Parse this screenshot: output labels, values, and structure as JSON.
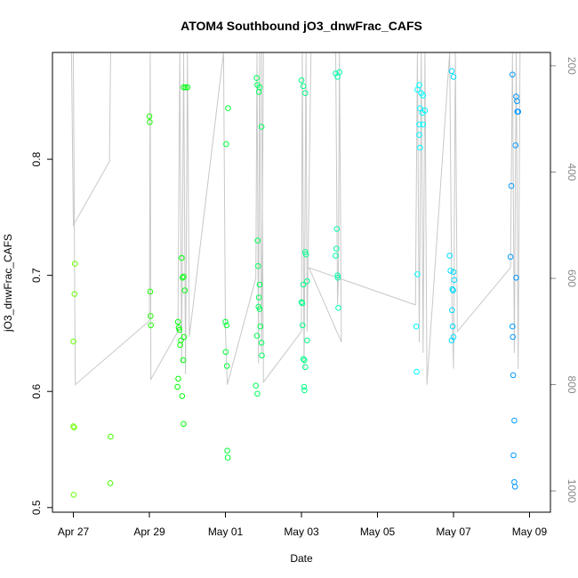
{
  "chart_data": {
    "type": "scatter",
    "title": "ATOM4 Southbound jO3_dnwFrac_CAFS",
    "xlabel": "Date",
    "ylabel": "jO3_dnwFrac_CAFS",
    "x_unit": "days since Apr 27",
    "xlim": [
      -0.55,
      12.55
    ],
    "ylim": [
      0.496,
      0.892
    ],
    "y2lim": [
      1040,
      175
    ],
    "x_ticks": [
      {
        "value": 0,
        "label": "Apr 27"
      },
      {
        "value": 2,
        "label": "Apr 29"
      },
      {
        "value": 4,
        "label": "May 01"
      },
      {
        "value": 6,
        "label": "May 03"
      },
      {
        "value": 8,
        "label": "May 05"
      },
      {
        "value": 10,
        "label": "May 07"
      },
      {
        "value": 12,
        "label": "May 09"
      }
    ],
    "y_ticks": [
      {
        "value": 0.5,
        "label": "0.5"
      },
      {
        "value": 0.6,
        "label": "0.6"
      },
      {
        "value": 0.7,
        "label": "0.7"
      },
      {
        "value": 0.8,
        "label": "0.8"
      }
    ],
    "y2_ticks": [
      {
        "value": 200,
        "label": "200"
      },
      {
        "value": 400,
        "label": "400"
      },
      {
        "value": 600,
        "label": "600"
      },
      {
        "value": 800,
        "label": "800"
      },
      {
        "value": 1000,
        "label": "1000"
      }
    ],
    "points": [
      {
        "x": 0.0,
        "y": 0.57
      },
      {
        "x": 0.02,
        "y": 0.569
      },
      {
        "x": 0.0,
        "y": 0.643
      },
      {
        "x": 0.03,
        "y": 0.684
      },
      {
        "x": 0.04,
        "y": 0.71
      },
      {
        "x": 0.01,
        "y": 0.511
      },
      {
        "x": 0.98,
        "y": 0.561
      },
      {
        "x": 0.97,
        "y": 0.521
      },
      {
        "x": 2.0,
        "y": 0.837
      },
      {
        "x": 2.01,
        "y": 0.832
      },
      {
        "x": 2.02,
        "y": 0.686
      },
      {
        "x": 2.03,
        "y": 0.665
      },
      {
        "x": 2.04,
        "y": 0.657
      },
      {
        "x": 2.75,
        "y": 0.66
      },
      {
        "x": 2.77,
        "y": 0.655
      },
      {
        "x": 2.79,
        "y": 0.653
      },
      {
        "x": 2.81,
        "y": 0.64
      },
      {
        "x": 2.83,
        "y": 0.644
      },
      {
        "x": 2.76,
        "y": 0.611
      },
      {
        "x": 2.74,
        "y": 0.604
      },
      {
        "x": 2.86,
        "y": 0.596
      },
      {
        "x": 2.9,
        "y": 0.572
      },
      {
        "x": 2.85,
        "y": 0.715
      },
      {
        "x": 2.87,
        "y": 0.698
      },
      {
        "x": 2.9,
        "y": 0.699
      },
      {
        "x": 2.93,
        "y": 0.687
      },
      {
        "x": 2.91,
        "y": 0.647
      },
      {
        "x": 2.89,
        "y": 0.627
      },
      {
        "x": 2.9,
        "y": 0.862
      },
      {
        "x": 2.95,
        "y": 0.862
      },
      {
        "x": 3.0,
        "y": 0.862
      },
      {
        "x": 4.0,
        "y": 0.66
      },
      {
        "x": 4.03,
        "y": 0.657
      },
      {
        "x": 4.01,
        "y": 0.634
      },
      {
        "x": 4.04,
        "y": 0.622
      },
      {
        "x": 4.05,
        "y": 0.549
      },
      {
        "x": 4.06,
        "y": 0.543
      },
      {
        "x": 4.02,
        "y": 0.813
      },
      {
        "x": 4.07,
        "y": 0.844
      },
      {
        "x": 4.82,
        "y": 0.87
      },
      {
        "x": 4.84,
        "y": 0.864
      },
      {
        "x": 4.88,
        "y": 0.858
      },
      {
        "x": 4.9,
        "y": 0.862
      },
      {
        "x": 4.95,
        "y": 0.828
      },
      {
        "x": 4.85,
        "y": 0.73
      },
      {
        "x": 4.86,
        "y": 0.708
      },
      {
        "x": 4.9,
        "y": 0.692
      },
      {
        "x": 4.88,
        "y": 0.681
      },
      {
        "x": 4.87,
        "y": 0.673
      },
      {
        "x": 4.9,
        "y": 0.671
      },
      {
        "x": 4.92,
        "y": 0.656
      },
      {
        "x": 4.83,
        "y": 0.648
      },
      {
        "x": 4.95,
        "y": 0.642
      },
      {
        "x": 4.96,
        "y": 0.631
      },
      {
        "x": 4.8,
        "y": 0.605
      },
      {
        "x": 4.84,
        "y": 0.598
      },
      {
        "x": 6.0,
        "y": 0.868
      },
      {
        "x": 6.05,
        "y": 0.863
      },
      {
        "x": 6.1,
        "y": 0.857
      },
      {
        "x": 6.1,
        "y": 0.72
      },
      {
        "x": 6.12,
        "y": 0.718
      },
      {
        "x": 6.15,
        "y": 0.695
      },
      {
        "x": 6.05,
        "y": 0.692
      },
      {
        "x": 6.0,
        "y": 0.677
      },
      {
        "x": 6.02,
        "y": 0.676
      },
      {
        "x": 6.03,
        "y": 0.657
      },
      {
        "x": 6.15,
        "y": 0.644
      },
      {
        "x": 6.05,
        "y": 0.628
      },
      {
        "x": 6.08,
        "y": 0.627
      },
      {
        "x": 6.1,
        "y": 0.621
      },
      {
        "x": 6.07,
        "y": 0.604
      },
      {
        "x": 6.08,
        "y": 0.601
      },
      {
        "x": 6.9,
        "y": 0.874
      },
      {
        "x": 6.95,
        "y": 0.871
      },
      {
        "x": 7.0,
        "y": 0.875
      },
      {
        "x": 6.93,
        "y": 0.74
      },
      {
        "x": 6.92,
        "y": 0.723
      },
      {
        "x": 6.9,
        "y": 0.717
      },
      {
        "x": 6.95,
        "y": 0.7
      },
      {
        "x": 6.96,
        "y": 0.698
      },
      {
        "x": 6.97,
        "y": 0.672
      },
      {
        "x": 9.05,
        "y": 0.86
      },
      {
        "x": 9.1,
        "y": 0.864
      },
      {
        "x": 9.15,
        "y": 0.857
      },
      {
        "x": 9.2,
        "y": 0.855
      },
      {
        "x": 9.12,
        "y": 0.844
      },
      {
        "x": 9.18,
        "y": 0.84
      },
      {
        "x": 9.25,
        "y": 0.842
      },
      {
        "x": 9.1,
        "y": 0.83
      },
      {
        "x": 9.2,
        "y": 0.83
      },
      {
        "x": 9.1,
        "y": 0.821
      },
      {
        "x": 9.12,
        "y": 0.81
      },
      {
        "x": 9.05,
        "y": 0.701
      },
      {
        "x": 9.02,
        "y": 0.656
      },
      {
        "x": 9.03,
        "y": 0.617
      },
      {
        "x": 9.95,
        "y": 0.876
      },
      {
        "x": 10.0,
        "y": 0.871
      },
      {
        "x": 9.9,
        "y": 0.717
      },
      {
        "x": 9.92,
        "y": 0.704
      },
      {
        "x": 10.0,
        "y": 0.703
      },
      {
        "x": 10.02,
        "y": 0.696
      },
      {
        "x": 9.97,
        "y": 0.688
      },
      {
        "x": 9.99,
        "y": 0.687
      },
      {
        "x": 9.96,
        "y": 0.67
      },
      {
        "x": 9.98,
        "y": 0.656
      },
      {
        "x": 10.0,
        "y": 0.647
      },
      {
        "x": 9.95,
        "y": 0.644
      },
      {
        "x": 11.55,
        "y": 0.873
      },
      {
        "x": 11.65,
        "y": 0.854
      },
      {
        "x": 11.67,
        "y": 0.85
      },
      {
        "x": 11.68,
        "y": 0.841
      },
      {
        "x": 11.7,
        "y": 0.841
      },
      {
        "x": 11.63,
        "y": 0.812
      },
      {
        "x": 11.52,
        "y": 0.777
      },
      {
        "x": 11.5,
        "y": 0.716
      },
      {
        "x": 11.65,
        "y": 0.698
      },
      {
        "x": 11.55,
        "y": 0.656
      },
      {
        "x": 11.56,
        "y": 0.647
      },
      {
        "x": 11.57,
        "y": 0.614
      },
      {
        "x": 11.6,
        "y": 0.575
      },
      {
        "x": 11.58,
        "y": 0.545
      },
      {
        "x": 11.6,
        "y": 0.522
      },
      {
        "x": 11.62,
        "y": 0.518
      }
    ],
    "altitude_trace_note": "gray line = pressure altitude on right axis",
    "altitude_trace": [
      [
        -0.05,
        175
      ],
      [
        0.0,
        500
      ],
      [
        0.95,
        380
      ],
      [
        0.98,
        175
      ],
      [
        0.99,
        175
      ],
      [
        0.0,
        175
      ],
      [
        0.05,
        800
      ],
      [
        2.0,
        680
      ],
      [
        2.02,
        175
      ],
      [
        2.04,
        790
      ],
      [
        2.75,
        700
      ],
      [
        2.8,
        175
      ],
      [
        2.85,
        760
      ],
      [
        2.9,
        175
      ],
      [
        2.95,
        780
      ],
      [
        3.0,
        175
      ],
      [
        3.05,
        710
      ],
      [
        3.95,
        175
      ],
      [
        4.0,
        695
      ],
      [
        4.05,
        800
      ],
      [
        4.8,
        600
      ],
      [
        4.83,
        175
      ],
      [
        4.87,
        760
      ],
      [
        4.9,
        175
      ],
      [
        4.95,
        740
      ],
      [
        5.0,
        175
      ],
      [
        4.95,
        175
      ],
      [
        5.0,
        795
      ],
      [
        6.0,
        700
      ],
      [
        6.02,
        175
      ],
      [
        6.07,
        770
      ],
      [
        6.12,
        175
      ],
      [
        6.15,
        700
      ],
      [
        6.25,
        175
      ],
      [
        6.3,
        175
      ],
      [
        6.9,
        175
      ],
      [
        6.95,
        650
      ],
      [
        6.97,
        600
      ],
      [
        7.0,
        175
      ],
      [
        7.05,
        720
      ],
      [
        6.2,
        580
      ],
      [
        9.0,
        650
      ],
      [
        9.05,
        175
      ],
      [
        9.1,
        720
      ],
      [
        9.15,
        175
      ],
      [
        9.2,
        740
      ],
      [
        9.25,
        175
      ],
      [
        9.3,
        800
      ],
      [
        9.9,
        175
      ],
      [
        9.95,
        620
      ],
      [
        10.0,
        770
      ],
      [
        10.05,
        175
      ],
      [
        10.1,
        700
      ],
      [
        11.5,
        580
      ],
      [
        11.55,
        175
      ],
      [
        11.6,
        740
      ],
      [
        11.65,
        175
      ],
      [
        11.7,
        770
      ],
      [
        11.75,
        175
      ]
    ],
    "color_scale": "time (green to blue)"
  }
}
